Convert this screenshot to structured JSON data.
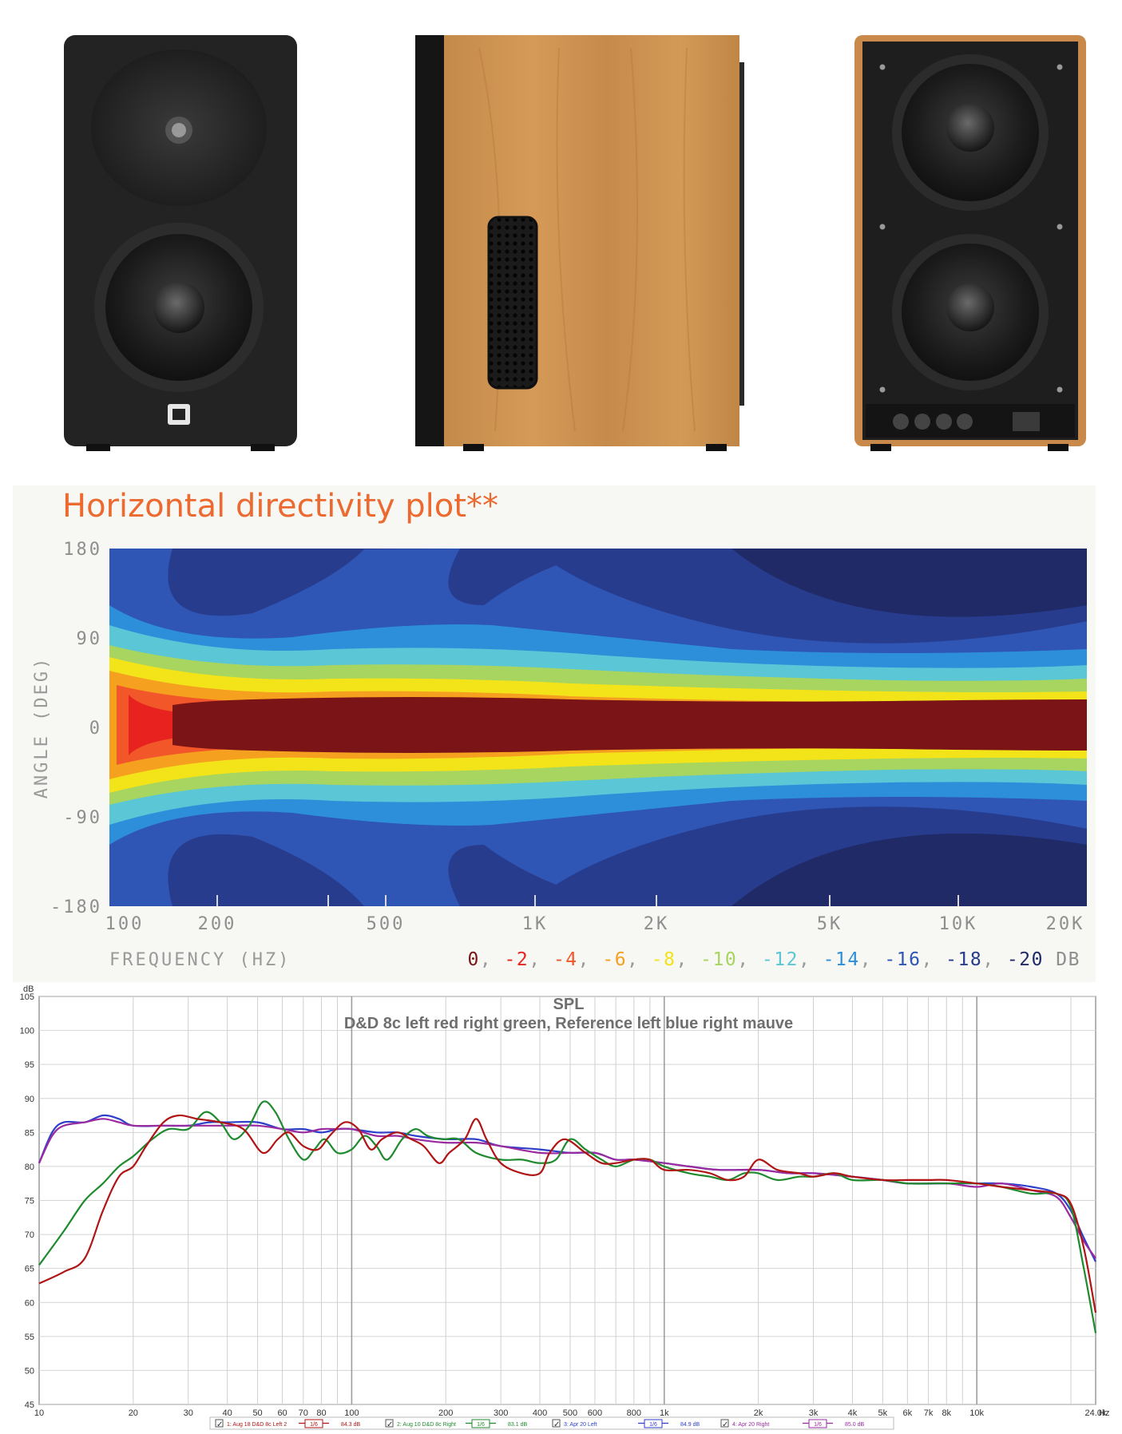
{
  "directivity": {
    "title": "Horizontal directivity plot**",
    "ylabel": "ANGLE (DEG)",
    "xlabel": "FREQUENCY (HZ)",
    "yticks": [
      "180",
      "90",
      "0",
      "-90",
      "-180"
    ],
    "xticks": [
      "100",
      "200",
      "500",
      "1K",
      "2K",
      "5K",
      "10K",
      "20K"
    ],
    "scale_unit": "DB",
    "scale": [
      {
        "label": "0",
        "color": "#7b1416"
      },
      {
        "label": "-2",
        "color": "#e8231f"
      },
      {
        "label": "-4",
        "color": "#f2572a"
      },
      {
        "label": "-6",
        "color": "#f6a020"
      },
      {
        "label": "-8",
        "color": "#f3e41a"
      },
      {
        "label": "-10",
        "color": "#a7d55f"
      },
      {
        "label": "-12",
        "color": "#5ac6d6"
      },
      {
        "label": "-14",
        "color": "#2d8fd9"
      },
      {
        "label": "-16",
        "color": "#2f55b5"
      },
      {
        "label": "-18",
        "color": "#283c8d"
      },
      {
        "label": "-20",
        "color": "#202a66"
      }
    ]
  },
  "chart_data": {
    "type": "line",
    "title": "SPL",
    "subtitle": "D&D 8c left red right green, Reference left blue right mauve",
    "ylabel": "dB",
    "xunit": "Hz",
    "xscale": "log",
    "xlim": [
      10,
      24000
    ],
    "ylim": [
      45,
      105
    ],
    "grid": true,
    "yticks": [
      105,
      100,
      95,
      90,
      85,
      80,
      75,
      70,
      65,
      60,
      55,
      50,
      45
    ],
    "xticks": [
      {
        "v": 10,
        "label": "10"
      },
      {
        "v": 20,
        "label": "20"
      },
      {
        "v": 30,
        "label": "30"
      },
      {
        "v": 40,
        "label": "40"
      },
      {
        "v": 50,
        "label": "50"
      },
      {
        "v": 60,
        "label": "60"
      },
      {
        "v": 70,
        "label": "70"
      },
      {
        "v": 80,
        "label": "80"
      },
      {
        "v": 100,
        "label": "100"
      },
      {
        "v": 200,
        "label": "200"
      },
      {
        "v": 300,
        "label": "300"
      },
      {
        "v": 400,
        "label": "400"
      },
      {
        "v": 500,
        "label": "500"
      },
      {
        "v": 600,
        "label": "600"
      },
      {
        "v": 800,
        "label": "800"
      },
      {
        "v": 1000,
        "label": "1k"
      },
      {
        "v": 2000,
        "label": "2k"
      },
      {
        "v": 3000,
        "label": "3k"
      },
      {
        "v": 4000,
        "label": "4k"
      },
      {
        "v": 5000,
        "label": "5k"
      },
      {
        "v": 6000,
        "label": "6k"
      },
      {
        "v": 7000,
        "label": "7k"
      },
      {
        "v": 8000,
        "label": "8k"
      },
      {
        "v": 10000,
        "label": "10k"
      },
      {
        "v": 24000,
        "label": "24.0k"
      }
    ],
    "series": [
      {
        "name": "1: Aug 18 D&D 8c Left 2",
        "smoothing": "1/6",
        "level": "84.3 dB",
        "color": "#b01414",
        "points": [
          [
            10,
            62.8
          ],
          [
            12,
            64.5
          ],
          [
            14,
            66.5
          ],
          [
            16,
            73.5
          ],
          [
            18,
            78.5
          ],
          [
            20,
            80
          ],
          [
            22,
            83
          ],
          [
            25,
            86.5
          ],
          [
            28,
            87.5
          ],
          [
            32,
            87
          ],
          [
            38,
            86.5
          ],
          [
            45,
            85.5
          ],
          [
            52,
            82
          ],
          [
            58,
            84
          ],
          [
            63,
            85
          ],
          [
            70,
            83
          ],
          [
            78,
            82.5
          ],
          [
            85,
            84.5
          ],
          [
            95,
            86.5
          ],
          [
            105,
            85.5
          ],
          [
            115,
            82.5
          ],
          [
            125,
            84
          ],
          [
            140,
            85
          ],
          [
            155,
            84
          ],
          [
            170,
            83
          ],
          [
            190,
            80.5
          ],
          [
            205,
            82
          ],
          [
            230,
            84
          ],
          [
            250,
            87
          ],
          [
            270,
            84
          ],
          [
            300,
            80.5
          ],
          [
            350,
            79
          ],
          [
            400,
            79
          ],
          [
            430,
            82
          ],
          [
            480,
            84
          ],
          [
            560,
            82
          ],
          [
            630,
            80.5
          ],
          [
            700,
            80.5
          ],
          [
            800,
            81
          ],
          [
            900,
            81
          ],
          [
            1000,
            79.5
          ],
          [
            1200,
            79.5
          ],
          [
            1400,
            79
          ],
          [
            1600,
            78
          ],
          [
            1800,
            78.5
          ],
          [
            2000,
            81
          ],
          [
            2300,
            79.5
          ],
          [
            2700,
            79
          ],
          [
            3000,
            78.5
          ],
          [
            3500,
            79
          ],
          [
            4000,
            78.5
          ],
          [
            5000,
            78
          ],
          [
            6000,
            78
          ],
          [
            7000,
            78
          ],
          [
            8000,
            78
          ],
          [
            10000,
            77.5
          ],
          [
            12000,
            77
          ],
          [
            15000,
            76.5
          ],
          [
            18000,
            76
          ],
          [
            20000,
            74.5
          ],
          [
            22000,
            68
          ],
          [
            24000,
            58.5
          ]
        ]
      },
      {
        "name": "2: Aug 10 D&D 8c Right",
        "smoothing": "1/6",
        "level": "83.1 dB",
        "color": "#1f8a2e",
        "points": [
          [
            10,
            65.5
          ],
          [
            12,
            70.5
          ],
          [
            14,
            75
          ],
          [
            16,
            77.5
          ],
          [
            18,
            80
          ],
          [
            20,
            81.5
          ],
          [
            23,
            84
          ],
          [
            26,
            85.5
          ],
          [
            30,
            85.5
          ],
          [
            34,
            88
          ],
          [
            38,
            86.5
          ],
          [
            42,
            84
          ],
          [
            47,
            86
          ],
          [
            52,
            89.5
          ],
          [
            57,
            88
          ],
          [
            63,
            84
          ],
          [
            70,
            81
          ],
          [
            76,
            82.5
          ],
          [
            82,
            84
          ],
          [
            90,
            82
          ],
          [
            100,
            82.5
          ],
          [
            110,
            84.5
          ],
          [
            120,
            83
          ],
          [
            130,
            81
          ],
          [
            145,
            84
          ],
          [
            160,
            85.5
          ],
          [
            175,
            84.5
          ],
          [
            195,
            84
          ],
          [
            220,
            84
          ],
          [
            250,
            82
          ],
          [
            300,
            81
          ],
          [
            350,
            81
          ],
          [
            400,
            80.5
          ],
          [
            450,
            81
          ],
          [
            500,
            84
          ],
          [
            560,
            82.5
          ],
          [
            630,
            81
          ],
          [
            700,
            80
          ],
          [
            800,
            81
          ],
          [
            900,
            81
          ],
          [
            1000,
            80
          ],
          [
            1200,
            79
          ],
          [
            1400,
            78.5
          ],
          [
            1600,
            78
          ],
          [
            1800,
            79
          ],
          [
            2000,
            79
          ],
          [
            2300,
            78
          ],
          [
            2700,
            78.5
          ],
          [
            3000,
            78.5
          ],
          [
            3500,
            79
          ],
          [
            4000,
            78
          ],
          [
            5000,
            78
          ],
          [
            6000,
            77.5
          ],
          [
            7000,
            77.5
          ],
          [
            8000,
            77.5
          ],
          [
            10000,
            77.5
          ],
          [
            12000,
            77
          ],
          [
            15000,
            76
          ],
          [
            18000,
            76
          ],
          [
            20000,
            74
          ],
          [
            22000,
            65
          ],
          [
            24000,
            55.5
          ]
        ]
      },
      {
        "name": "3: Apr 20 Left",
        "smoothing": "1/6",
        "level": "84.9 dB",
        "color": "#2e3fc9",
        "points": [
          [
            10,
            80.5
          ],
          [
            11,
            85
          ],
          [
            12,
            86.5
          ],
          [
            14,
            86.5
          ],
          [
            16,
            87.5
          ],
          [
            18,
            87
          ],
          [
            20,
            86
          ],
          [
            25,
            86
          ],
          [
            30,
            86
          ],
          [
            35,
            86.5
          ],
          [
            40,
            86.5
          ],
          [
            50,
            86.5
          ],
          [
            60,
            85.5
          ],
          [
            70,
            85.5
          ],
          [
            80,
            85
          ],
          [
            90,
            85.5
          ],
          [
            100,
            85.5
          ],
          [
            120,
            85
          ],
          [
            140,
            85
          ],
          [
            160,
            84.5
          ],
          [
            200,
            84
          ],
          [
            250,
            84
          ],
          [
            300,
            83
          ],
          [
            400,
            82.5
          ],
          [
            500,
            82
          ],
          [
            600,
            82
          ],
          [
            700,
            81
          ],
          [
            800,
            81
          ],
          [
            1000,
            80.5
          ],
          [
            1200,
            80
          ],
          [
            1500,
            79.5
          ],
          [
            2000,
            79.5
          ],
          [
            2500,
            79
          ],
          [
            3000,
            79
          ],
          [
            4000,
            78.5
          ],
          [
            5000,
            78
          ],
          [
            6000,
            77.5
          ],
          [
            8000,
            77.5
          ],
          [
            10000,
            77.5
          ],
          [
            12000,
            77.5
          ],
          [
            15000,
            77
          ],
          [
            18000,
            76
          ],
          [
            20000,
            73.5
          ],
          [
            22000,
            69.5
          ],
          [
            24000,
            66
          ]
        ]
      },
      {
        "name": "4: Apr 20 Right",
        "smoothing": "1/6",
        "level": "85.0 dB",
        "color": "#9a2aa0",
        "points": [
          [
            10,
            80.5
          ],
          [
            11,
            84.5
          ],
          [
            12,
            86
          ],
          [
            14,
            86.5
          ],
          [
            16,
            87
          ],
          [
            18,
            86.5
          ],
          [
            20,
            86
          ],
          [
            25,
            86
          ],
          [
            30,
            86
          ],
          [
            35,
            86
          ],
          [
            40,
            86
          ],
          [
            50,
            86
          ],
          [
            60,
            85.5
          ],
          [
            70,
            85
          ],
          [
            80,
            85.5
          ],
          [
            90,
            85.5
          ],
          [
            100,
            85.5
          ],
          [
            120,
            84.5
          ],
          [
            140,
            84.5
          ],
          [
            160,
            84
          ],
          [
            200,
            83.5
          ],
          [
            250,
            83.5
          ],
          [
            300,
            83
          ],
          [
            400,
            82
          ],
          [
            500,
            82
          ],
          [
            600,
            82
          ],
          [
            700,
            81
          ],
          [
            800,
            81
          ],
          [
            1000,
            80.5
          ],
          [
            1200,
            80
          ],
          [
            1500,
            79.5
          ],
          [
            2000,
            79.5
          ],
          [
            2500,
            79
          ],
          [
            3000,
            79
          ],
          [
            4000,
            78.5
          ],
          [
            5000,
            78
          ],
          [
            6000,
            77.5
          ],
          [
            8000,
            77.5
          ],
          [
            10000,
            77
          ],
          [
            12000,
            77.5
          ],
          [
            15000,
            76.5
          ],
          [
            18000,
            75.5
          ],
          [
            20000,
            72.5
          ],
          [
            22000,
            69
          ],
          [
            24000,
            66.5
          ]
        ]
      }
    ]
  }
}
